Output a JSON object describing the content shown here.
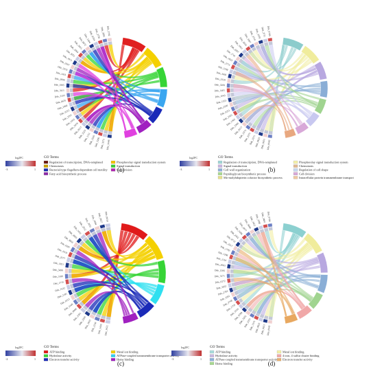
{
  "panels": [
    {
      "label": "(a)",
      "color_scale": {
        "title": "log2FC",
        "min": "-3",
        "max": "1"
      },
      "legend_title": "GO Terms",
      "terms": [
        {
          "name": "Regulation of transcription, DNA-templated",
          "color": "#6b1a12"
        },
        {
          "name": "Chemotaxis",
          "color": "#caa100"
        },
        {
          "name": "Bacterial-type flagellum-dependent cell motility",
          "color": "#1c2db0"
        },
        {
          "name": "Fatty acid biosynthetic process",
          "color": "#8c2aa8"
        },
        {
          "name": "Phosphorelay signal transduction system",
          "color": "#f2c200"
        },
        {
          "name": "Signal transduction",
          "color": "#35d035"
        },
        {
          "name": "Cell division",
          "color": "#b02ab0"
        }
      ],
      "arc_colors": [
        "#e02020",
        "#f4d000",
        "#36d436",
        "#3aa6f0",
        "#1a2ab8",
        "#a020c0",
        "#e040e0"
      ],
      "genes": [
        "Dde_2648",
        "Dde_3275",
        "Dde_3205",
        "Dde_3245",
        "Dde_1151",
        "Dde_2223",
        "Dde_0217",
        "Dde_2678",
        "Dde_1955",
        "Dde_2201",
        "Dde_0222",
        "Dde_1068",
        "Dde_0670",
        "Dde_3150",
        "Dde_3411",
        "Dde_1905",
        "Dde_3896",
        "Dde_1433",
        "Dde_2253",
        "Dde_0207",
        "Dde_1871",
        "Dde_2051",
        "Dde_3264",
        "Dde_2615",
        "Dde_0672",
        "Dde_1384",
        "Dde_0204",
        "Dde_2736",
        "Dde_3285",
        "Dde_3702"
      ]
    },
    {
      "label": "(b)",
      "color_scale": {
        "title": "log2FC",
        "min": "-3",
        "max": "1"
      },
      "legend_title": "GO Terms",
      "terms": [
        {
          "name": "Regulation of transcription, DNA-templated",
          "color": "#9fd6d6"
        },
        {
          "name": "Signal transduction",
          "color": "#c8b4e0"
        },
        {
          "name": "Cell wall organization",
          "color": "#8fb0d8"
        },
        {
          "name": "Peptidoglycan biosynthetic process",
          "color": "#a8d890"
        },
        {
          "name": "Mo-molybdopterin cofactor biosynthetic process",
          "color": "#e6e08a"
        },
        {
          "name": "Phosphorelay signal transduction system",
          "color": "#f4f0a8"
        },
        {
          "name": "Chemotaxis",
          "color": "#e0b890"
        },
        {
          "name": "Regulation of cell shape",
          "color": "#c6d8f0"
        },
        {
          "name": "Cell division",
          "color": "#d8a8d8"
        },
        {
          "name": "Intracellular protein transmembrane transport",
          "color": "#f0c8a0"
        }
      ],
      "arc_colors": [
        "#8ccccc",
        "#f0ec9c",
        "#b8a8e0",
        "#8aaed6",
        "#a0d490",
        "#c8c8f0",
        "#d8a8d8",
        "#e8a880"
      ],
      "genes": [
        "Dde_0642",
        "Dde_0655",
        "Dde_0623",
        "Dde_2271",
        "Dde_2275",
        "Dde_2373",
        "Dde_0217",
        "Dde_2390",
        "Dde_1305",
        "Dde_1955",
        "Dde_0221",
        "Dde_2100",
        "Dde_1353",
        "Dde_1043",
        "Dde_1405",
        "Dde_3208",
        "Dde_3339",
        "Dde_3430",
        "Dde_2109",
        "Dde_2773",
        "Dde_1833",
        "Dde_1741",
        "Dde_2207",
        "Dde_1810",
        "Dde_3019",
        "Dde_3267",
        "Dde_3719",
        "Dde_3278",
        "Dde_2711",
        "Dde_0789"
      ]
    },
    {
      "label": "(c)",
      "color_scale": {
        "title": "log2FC",
        "min": "-2",
        "max": "1"
      },
      "legend_title": "GO Terms",
      "terms": [
        {
          "name": "ATP binding",
          "color": "#e01a1a"
        },
        {
          "name": "Hydrolase activity",
          "color": "#36d436"
        },
        {
          "name": "Electron transfer activity",
          "color": "#1a2ab8"
        },
        {
          "name": "Metal ion binding",
          "color": "#f4d000"
        },
        {
          "name": "ATPase-coupled transmembrane transporter activity",
          "color": "#2fd0f0"
        },
        {
          "name": "Heme binding",
          "color": "#a020c0"
        }
      ],
      "arc_colors": [
        "#e01a1a",
        "#f4d000",
        "#36d436",
        "#2fe0f0",
        "#1a2ab8",
        "#a020c0"
      ],
      "genes": [
        "Dde_1422",
        "Dde_1430",
        "Dde_2130",
        "Dde_3431",
        "Dde_3200",
        "Dde_2301",
        "Dde_0988",
        "Dde_1168",
        "Dde_0213",
        "Dde_1191",
        "Dde_1632",
        "Dde_1770",
        "Dde_3180",
        "Dde_3498",
        "Dde_1821",
        "Dde_2577",
        "Dde_1624",
        "Dde_0287",
        "Dde_3663",
        "Dde_3695",
        "Dde_1431",
        "Dde_2912",
        "Dde_3652",
        "Dde_3604",
        "Dde_0627",
        "Dde_0618"
      ]
    },
    {
      "label": "(d)",
      "color_scale": {
        "title": "log2FC",
        "min": "-3",
        "max": "1"
      },
      "legend_title": "GO Terms",
      "terms": [
        {
          "name": "ATP binding",
          "color": "#a8dcdc"
        },
        {
          "name": "Hydrolase activity",
          "color": "#c8b8e0"
        },
        {
          "name": "ATPase-coupled transmembrane transporter activity",
          "color": "#8cb0d8"
        },
        {
          "name": "Heme binding",
          "color": "#a8d890"
        },
        {
          "name": "Metal ion binding",
          "color": "#f4f0a8"
        },
        {
          "name": "4 iron, 4 sulfur cluster binding",
          "color": "#f0a8a8"
        },
        {
          "name": "Electron transfer activity",
          "color": "#e8b070"
        }
      ],
      "arc_colors": [
        "#8cd0d0",
        "#f0ec9c",
        "#b8a8e0",
        "#8aaed6",
        "#a0d490",
        "#f0a8a8",
        "#e8a860"
      ],
      "genes": [
        "Dde_0642",
        "Dde_0651",
        "Dde_0623",
        "Dde_1375",
        "Dde_2255",
        "Dde_3202",
        "Dde_0788",
        "Dde_3126",
        "Dde_1759",
        "Dde_3748",
        "Dde_3281",
        "Dde_2783",
        "Dde_3262",
        "Dde_0272",
        "Dde_3271",
        "Dde_1306",
        "Dde_3683",
        "Dde_1210",
        "Dde_1286",
        "Dde_1782",
        "Dde_3217",
        "Dde_0712",
        "Dde_2452",
        "Dde_0286",
        "Dde_2677",
        "Dde_3649",
        "Dde_3452",
        "Dde_3580",
        "Dde_3400",
        "Dde_0790"
      ]
    }
  ]
}
